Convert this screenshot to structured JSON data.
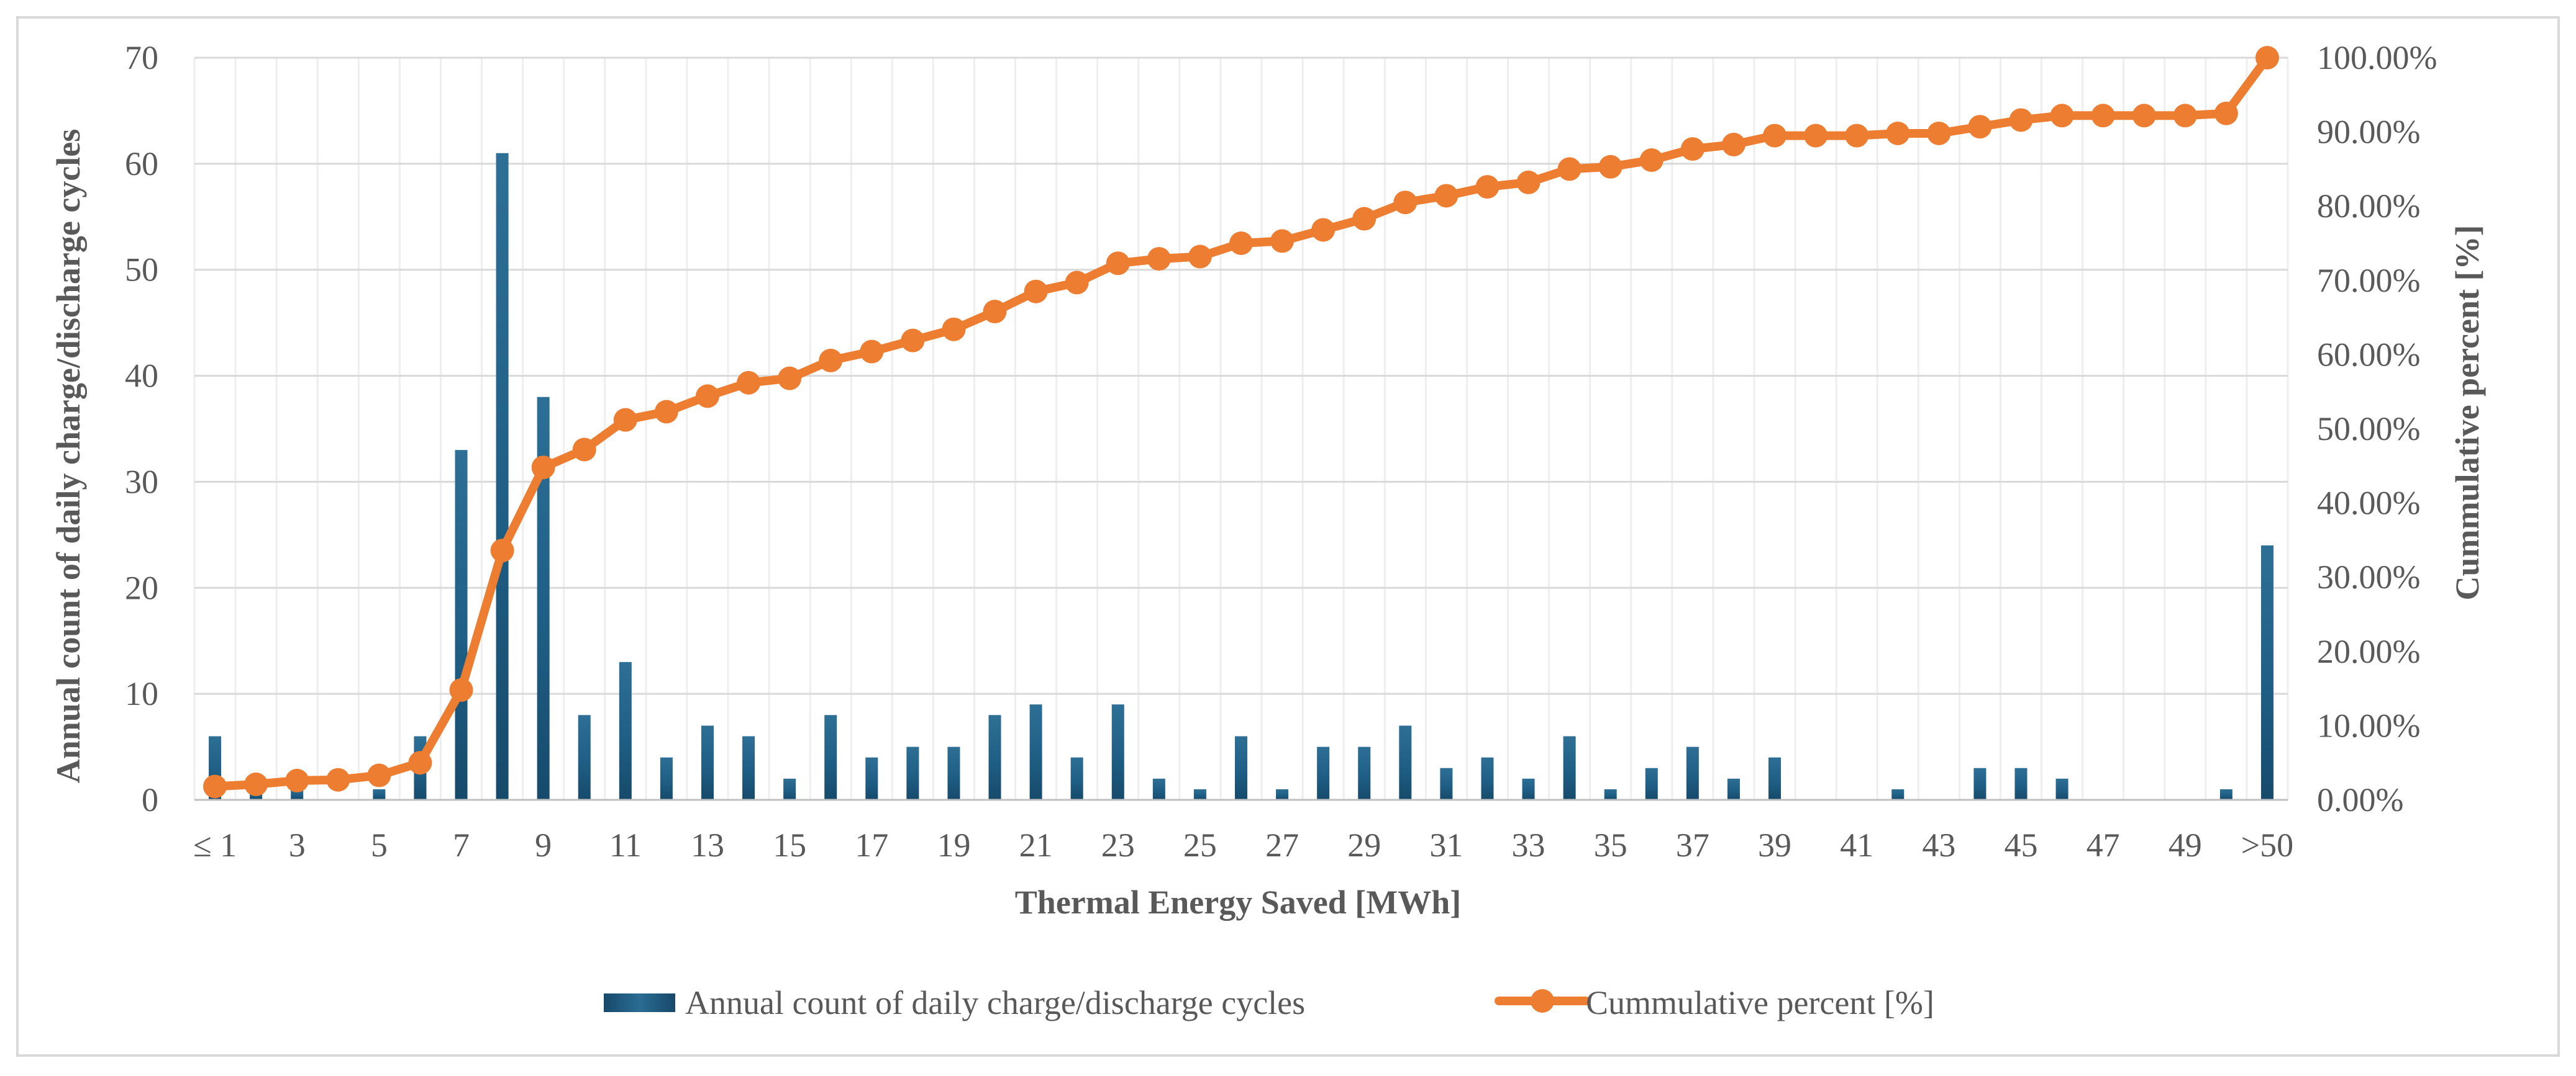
{
  "chart_data": {
    "type": "bar",
    "xlabel": "Thermal Energy Saved [MWh]",
    "ylabel": "Annual count of daily charge/discharge cycles",
    "y2label": "Cummulative percent [%]",
    "ylim": [
      0,
      70
    ],
    "y2lim": [
      0,
      100
    ],
    "yticks": [
      "0",
      "10",
      "20",
      "30",
      "40",
      "50",
      "60",
      "70"
    ],
    "y2ticks": [
      "0.00%",
      "10.00%",
      "20.00%",
      "30.00%",
      "40.00%",
      "50.00%",
      "60.00%",
      "70.00%",
      "80.00%",
      "90.00%",
      "100.00%"
    ],
    "categories": [
      "≤ 1",
      "2",
      "3",
      "4",
      "5",
      "6",
      "7",
      "8",
      "9",
      "10",
      "11",
      "12",
      "13",
      "14",
      "15",
      "16",
      "17",
      "18",
      "19",
      "20",
      "21",
      "22",
      "23",
      "24",
      "25",
      "26",
      "27",
      "28",
      "29",
      "30",
      "31",
      "32",
      "33",
      "34",
      "35",
      "36",
      "37",
      "38",
      "39",
      "40",
      "41",
      "42",
      "43",
      "44",
      "45",
      "46",
      "47",
      "48",
      "49",
      "50",
      ">50"
    ],
    "tick_labels": [
      "≤ 1",
      "",
      "3",
      "",
      "5",
      "",
      "7",
      "",
      "9",
      "",
      "11",
      "",
      "13",
      "",
      "15",
      "",
      "17",
      "",
      "19",
      "",
      "21",
      "",
      "23",
      "",
      "25",
      "",
      "27",
      "",
      "29",
      "",
      "31",
      "",
      "33",
      "",
      "35",
      "",
      "37",
      "",
      "39",
      "",
      "41",
      "",
      "43",
      "",
      "45",
      "",
      "47",
      "",
      "49",
      "",
      ">50"
    ],
    "series": [
      {
        "name": "Annual count of daily charge/discharge cycles",
        "type": "bar",
        "axis": "left",
        "color": "#1F5F85",
        "values": [
          6,
          1,
          1,
          0,
          1,
          6,
          33,
          61,
          38,
          8,
          13,
          4,
          7,
          6,
          2,
          8,
          4,
          5,
          5,
          8,
          9,
          4,
          9,
          2,
          1,
          6,
          1,
          5,
          5,
          7,
          3,
          4,
          2,
          6,
          1,
          3,
          5,
          2,
          4,
          0,
          0,
          1,
          0,
          3,
          3,
          2,
          0,
          0,
          0,
          1,
          24
        ]
      },
      {
        "name": "Cummulative percent [%]",
        "type": "line",
        "axis": "right",
        "color": "#ED7D31",
        "values": [
          1.8,
          2.1,
          2.6,
          2.7,
          3.3,
          5.0,
          14.8,
          33.6,
          44.8,
          47.2,
          51.2,
          52.3,
          54.4,
          56.2,
          56.8,
          59.2,
          60.4,
          61.9,
          63.4,
          65.8,
          68.5,
          69.7,
          72.3,
          72.9,
          73.2,
          75.0,
          75.3,
          76.8,
          78.3,
          80.5,
          81.4,
          82.6,
          83.2,
          85.0,
          85.3,
          86.2,
          87.7,
          88.3,
          89.5,
          89.5,
          89.5,
          89.8,
          89.8,
          90.7,
          91.6,
          92.2,
          92.2,
          92.2,
          92.2,
          92.5,
          100.0
        ]
      }
    ],
    "grid": "horizontal-and-vertical",
    "legend": "bottom-center"
  }
}
